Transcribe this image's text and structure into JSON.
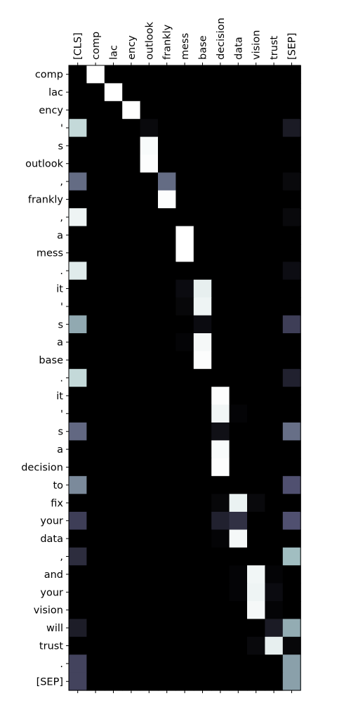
{
  "chart_data": {
    "type": "heatmap",
    "colormap": "bone",
    "x_tokens": [
      "[CLS]",
      "comp",
      "lac",
      "ency",
      "outlook",
      "frankly",
      "mess",
      "base",
      "decision",
      "data",
      "vision",
      "trust",
      "[SEP]"
    ],
    "y_tokens": [
      "comp",
      "lac",
      "ency",
      "'",
      "s",
      "outlook",
      ",",
      "frankly",
      ",",
      "a",
      "mess",
      ".",
      "it",
      "'",
      "s",
      "a",
      "base",
      ".",
      "it",
      "'",
      "s",
      "a",
      "decision",
      "to",
      "fix",
      "your",
      "data",
      ",",
      "and",
      "your",
      "vision",
      "will",
      "trust",
      ".",
      "[SEP]"
    ],
    "values": [
      [
        0.0,
        1.0,
        0.0,
        0.0,
        0.0,
        0.0,
        0.0,
        0.0,
        0.0,
        0.0,
        0.0,
        0.0,
        0.0
      ],
      [
        0.0,
        0.0,
        1.0,
        0.0,
        0.0,
        0.0,
        0.0,
        0.0,
        0.0,
        0.0,
        0.0,
        0.0,
        0.0
      ],
      [
        0.0,
        0.0,
        0.0,
        1.0,
        0.0,
        0.0,
        0.0,
        0.0,
        0.0,
        0.0,
        0.0,
        0.0,
        0.0
      ],
      [
        0.83,
        0.0,
        0.0,
        0.0,
        0.04,
        0.0,
        0.0,
        0.0,
        0.0,
        0.0,
        0.0,
        0.0,
        0.12
      ],
      [
        0.0,
        0.0,
        0.0,
        0.0,
        0.98,
        0.0,
        0.0,
        0.0,
        0.0,
        0.0,
        0.0,
        0.0,
        0.0
      ],
      [
        0.0,
        0.0,
        0.0,
        0.0,
        0.99,
        0.0,
        0.0,
        0.0,
        0.0,
        0.0,
        0.0,
        0.0,
        0.0
      ],
      [
        0.45,
        0.0,
        0.0,
        0.0,
        0.0,
        0.45,
        0.0,
        0.0,
        0.0,
        0.0,
        0.0,
        0.0,
        0.04
      ],
      [
        0.0,
        0.0,
        0.0,
        0.0,
        0.0,
        0.99,
        0.0,
        0.0,
        0.0,
        0.0,
        0.0,
        0.0,
        0.0
      ],
      [
        0.95,
        0.0,
        0.0,
        0.0,
        0.0,
        0.0,
        0.0,
        0.0,
        0.0,
        0.0,
        0.0,
        0.0,
        0.04
      ],
      [
        0.0,
        0.0,
        0.0,
        0.0,
        0.0,
        0.0,
        1.0,
        0.0,
        0.0,
        0.0,
        0.0,
        0.0,
        0.0
      ],
      [
        0.0,
        0.0,
        0.0,
        0.0,
        0.0,
        0.0,
        1.0,
        0.0,
        0.0,
        0.0,
        0.0,
        0.0,
        0.0
      ],
      [
        0.91,
        0.0,
        0.0,
        0.0,
        0.0,
        0.0,
        0.0,
        0.0,
        0.0,
        0.0,
        0.0,
        0.0,
        0.06
      ],
      [
        0.0,
        0.0,
        0.0,
        0.0,
        0.0,
        0.0,
        0.05,
        0.93,
        0.0,
        0.0,
        0.0,
        0.0,
        0.0
      ],
      [
        0.0,
        0.0,
        0.0,
        0.0,
        0.0,
        0.0,
        0.03,
        0.95,
        0.0,
        0.0,
        0.0,
        0.0,
        0.0
      ],
      [
        0.65,
        0.0,
        0.0,
        0.0,
        0.0,
        0.0,
        0.0,
        0.05,
        0.0,
        0.0,
        0.0,
        0.0,
        0.28
      ],
      [
        0.0,
        0.0,
        0.0,
        0.0,
        0.0,
        0.0,
        0.02,
        0.97,
        0.0,
        0.0,
        0.0,
        0.0,
        0.0
      ],
      [
        0.0,
        0.0,
        0.0,
        0.0,
        0.0,
        0.0,
        0.0,
        0.99,
        0.0,
        0.0,
        0.0,
        0.0,
        0.0
      ],
      [
        0.83,
        0.0,
        0.0,
        0.0,
        0.0,
        0.0,
        0.0,
        0.0,
        0.0,
        0.0,
        0.0,
        0.0,
        0.15
      ],
      [
        0.0,
        0.0,
        0.0,
        0.0,
        0.0,
        0.0,
        0.0,
        0.0,
        0.99,
        0.0,
        0.0,
        0.0,
        0.0
      ],
      [
        0.0,
        0.0,
        0.0,
        0.0,
        0.0,
        0.0,
        0.0,
        0.0,
        0.96,
        0.02,
        0.0,
        0.0,
        0.0
      ],
      [
        0.44,
        0.0,
        0.0,
        0.0,
        0.0,
        0.0,
        0.0,
        0.0,
        0.07,
        0.0,
        0.0,
        0.0,
        0.46
      ],
      [
        0.0,
        0.0,
        0.0,
        0.0,
        0.0,
        0.0,
        0.0,
        0.0,
        0.98,
        0.0,
        0.0,
        0.0,
        0.0
      ],
      [
        0.0,
        0.0,
        0.0,
        0.0,
        0.0,
        0.0,
        0.0,
        0.0,
        0.99,
        0.0,
        0.0,
        0.0,
        0.0
      ],
      [
        0.55,
        0.0,
        0.0,
        0.0,
        0.0,
        0.0,
        0.0,
        0.0,
        0.0,
        0.0,
        0.0,
        0.0,
        0.36
      ],
      [
        0.0,
        0.0,
        0.0,
        0.0,
        0.0,
        0.0,
        0.0,
        0.0,
        0.03,
        0.94,
        0.04,
        0.0,
        0.0
      ],
      [
        0.28,
        0.0,
        0.0,
        0.0,
        0.0,
        0.0,
        0.0,
        0.0,
        0.15,
        0.22,
        0.0,
        0.0,
        0.36
      ],
      [
        0.0,
        0.0,
        0.0,
        0.0,
        0.0,
        0.0,
        0.0,
        0.0,
        0.02,
        0.97,
        0.0,
        0.0,
        0.0
      ],
      [
        0.2,
        0.0,
        0.0,
        0.0,
        0.0,
        0.0,
        0.0,
        0.0,
        0.0,
        0.0,
        0.0,
        0.0,
        0.72
      ],
      [
        0.0,
        0.0,
        0.0,
        0.0,
        0.0,
        0.0,
        0.0,
        0.0,
        0.0,
        0.02,
        0.96,
        0.02,
        0.0
      ],
      [
        0.0,
        0.0,
        0.0,
        0.0,
        0.0,
        0.0,
        0.0,
        0.0,
        0.0,
        0.02,
        0.95,
        0.05,
        0.0
      ],
      [
        0.0,
        0.0,
        0.0,
        0.0,
        0.0,
        0.0,
        0.0,
        0.0,
        0.0,
        0.0,
        0.97,
        0.02,
        0.0
      ],
      [
        0.13,
        0.0,
        0.0,
        0.0,
        0.0,
        0.0,
        0.0,
        0.0,
        0.0,
        0.0,
        0.0,
        0.12,
        0.66
      ],
      [
        0.0,
        0.0,
        0.0,
        0.0,
        0.0,
        0.0,
        0.0,
        0.0,
        0.0,
        0.0,
        0.04,
        0.93,
        0.03
      ],
      [
        0.3,
        0.0,
        0.0,
        0.0,
        0.0,
        0.0,
        0.0,
        0.0,
        0.0,
        0.0,
        0.0,
        0.0,
        0.62
      ],
      [
        0.3,
        0.0,
        0.0,
        0.0,
        0.0,
        0.0,
        0.0,
        0.0,
        0.0,
        0.0,
        0.0,
        0.0,
        0.62
      ]
    ]
  }
}
